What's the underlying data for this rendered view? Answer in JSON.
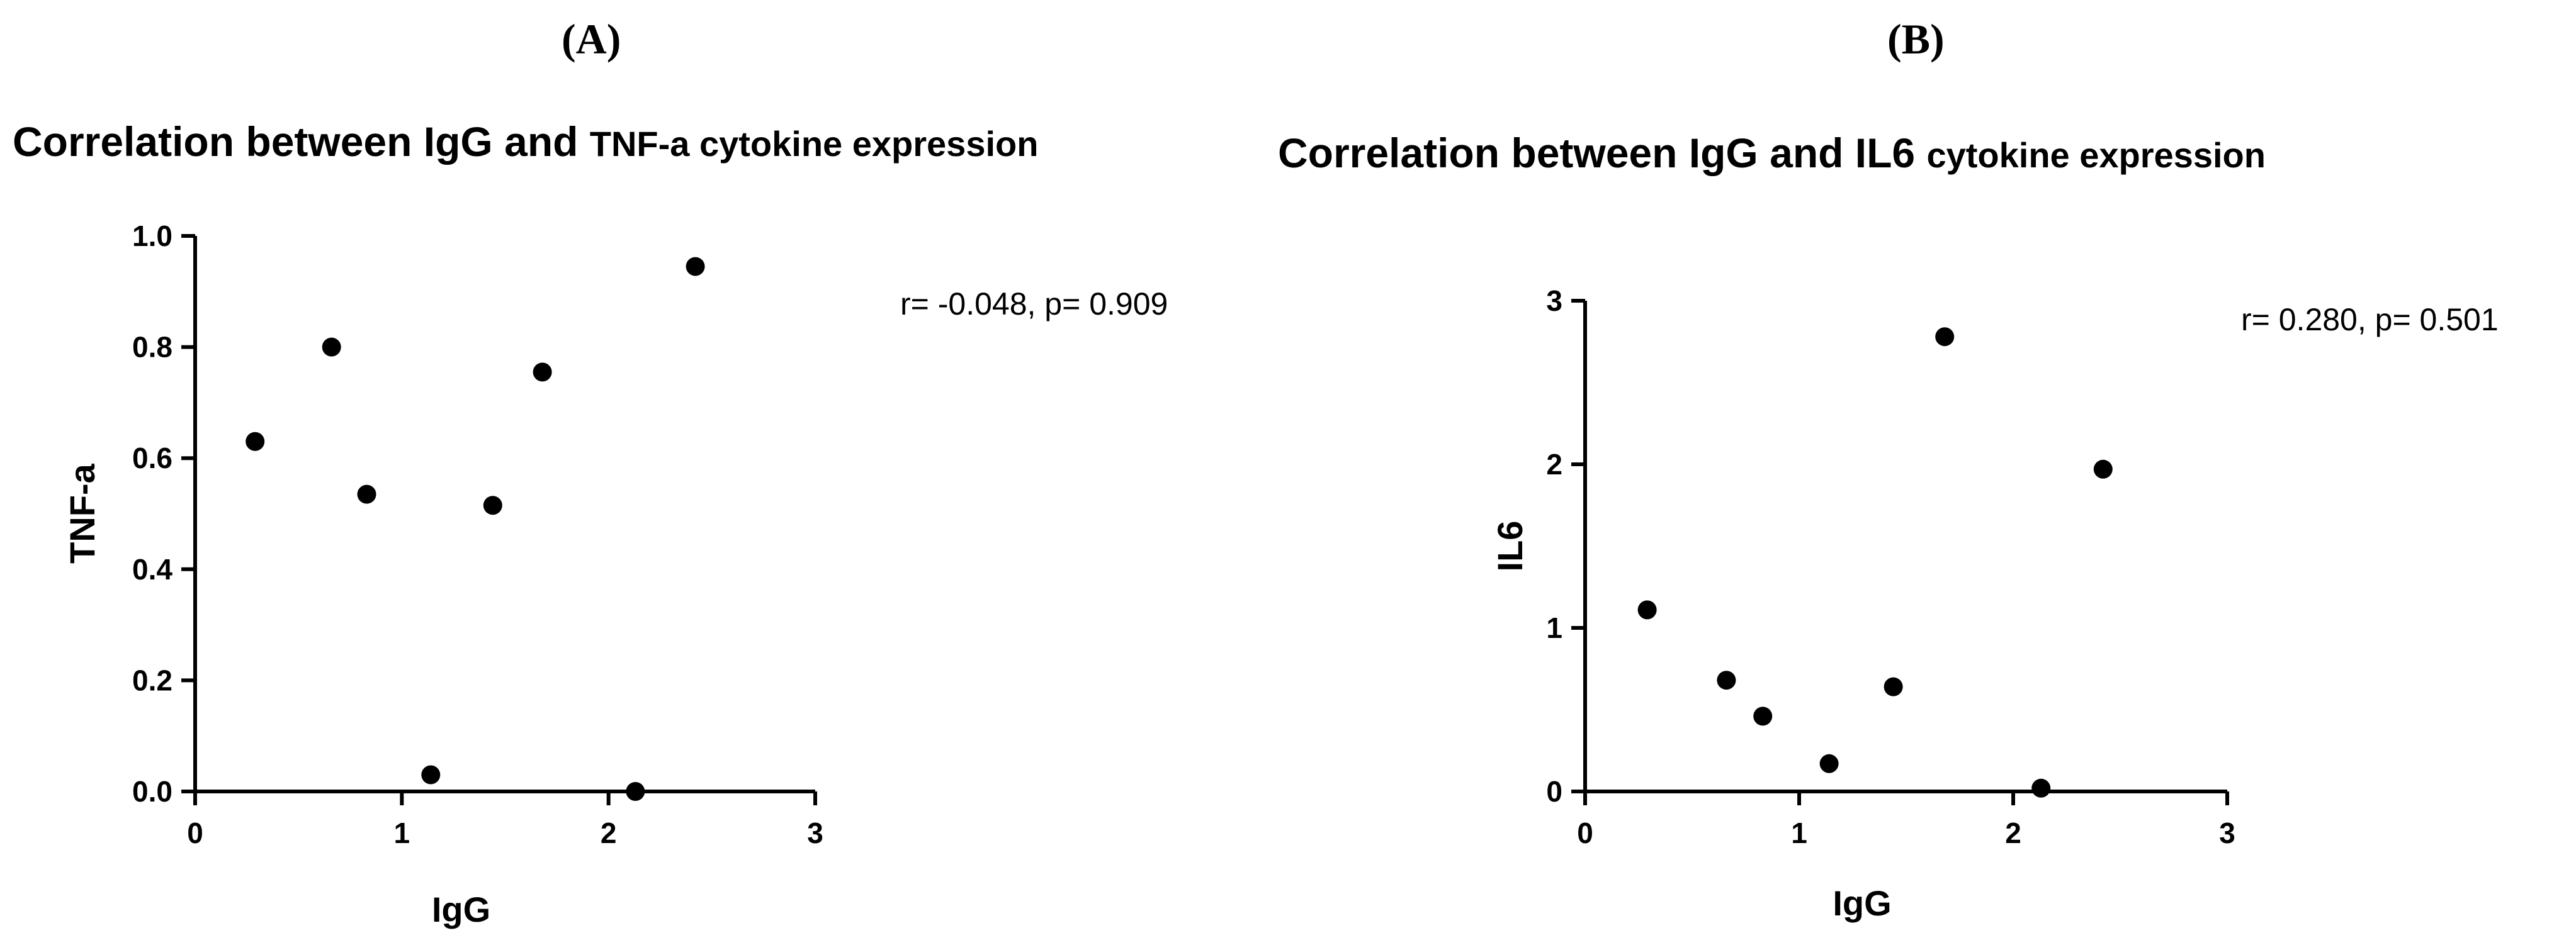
{
  "panels": [
    {
      "label": "(A)"
    },
    {
      "label": "(B)"
    }
  ],
  "chart_data": [
    {
      "type": "scatter",
      "title_main": "Correlation between IgG and ",
      "title_sub": "TNF-a cytokine expression",
      "xlabel": "IgG",
      "ylabel": "TNF-a",
      "xlim": [
        0,
        3
      ],
      "ylim": [
        0,
        1.0
      ],
      "xticks": [
        0,
        1,
        2,
        3
      ],
      "yticks": [
        0.0,
        0.2,
        0.4,
        0.6,
        0.8,
        1.0
      ],
      "ytick_labels": [
        "0.0",
        "0.2",
        "0.4",
        "0.6",
        "0.8",
        "1.0"
      ],
      "xtick_labels": [
        "0",
        "1",
        "2",
        "3"
      ],
      "grid": false,
      "annotation": "r= -0.048, p= 0.909",
      "points": [
        {
          "x": 0.29,
          "y": 0.63
        },
        {
          "x": 0.66,
          "y": 0.8
        },
        {
          "x": 0.83,
          "y": 0.535
        },
        {
          "x": 1.14,
          "y": 0.03
        },
        {
          "x": 1.44,
          "y": 0.515
        },
        {
          "x": 1.68,
          "y": 0.755
        },
        {
          "x": 2.13,
          "y": 0.0
        },
        {
          "x": 2.42,
          "y": 0.945
        }
      ]
    },
    {
      "type": "scatter",
      "title_main": "Correlation between IgG and IL6 ",
      "title_sub": "cytokine expression",
      "xlabel": "IgG",
      "ylabel": "IL6",
      "xlim": [
        0,
        3
      ],
      "ylim": [
        0,
        3
      ],
      "xticks": [
        0,
        1,
        2,
        3
      ],
      "yticks": [
        0,
        1,
        2,
        3
      ],
      "ytick_labels": [
        "0",
        "1",
        "2",
        "3"
      ],
      "xtick_labels": [
        "0",
        "1",
        "2",
        "3"
      ],
      "grid": false,
      "annotation": "r= 0.280, p= 0.501",
      "points": [
        {
          "x": 0.29,
          "y": 1.11
        },
        {
          "x": 0.66,
          "y": 0.68
        },
        {
          "x": 0.83,
          "y": 0.46
        },
        {
          "x": 1.14,
          "y": 0.17
        },
        {
          "x": 1.44,
          "y": 0.64
        },
        {
          "x": 1.68,
          "y": 2.78
        },
        {
          "x": 2.13,
          "y": 0.02
        },
        {
          "x": 2.42,
          "y": 1.97
        }
      ]
    }
  ]
}
